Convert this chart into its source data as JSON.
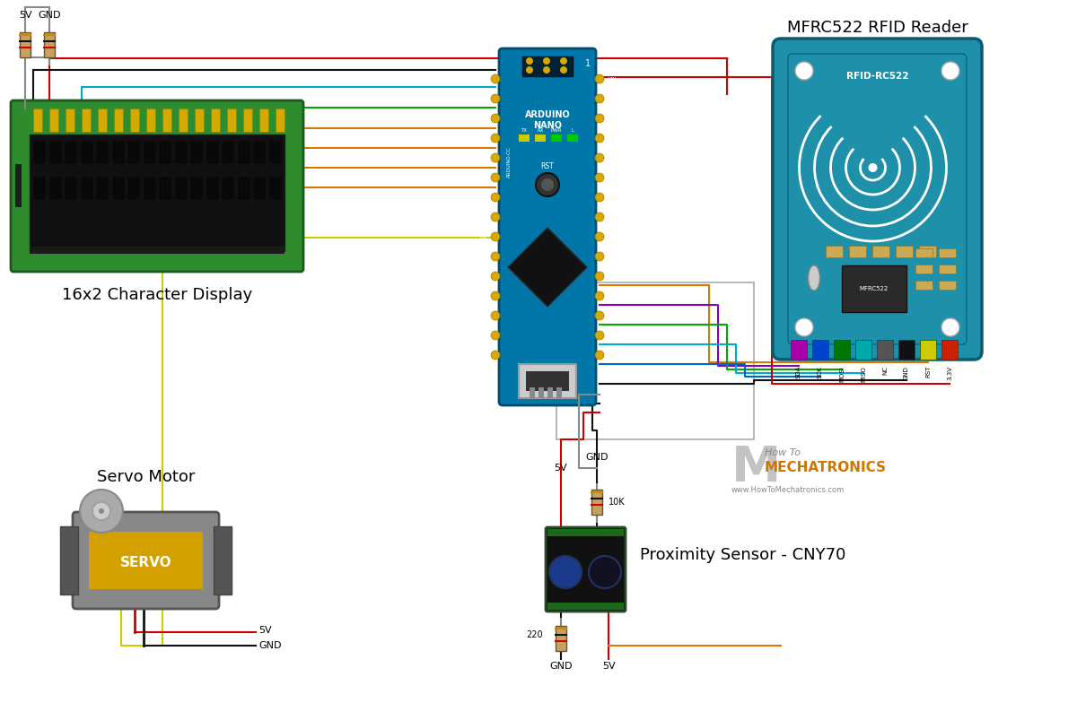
{
  "bg": "#ffffff",
  "lcd_green": "#2e8b2e",
  "lcd_screen": "#111111",
  "ard_blue": "#0077a8",
  "rfid_teal": "#1e90aa",
  "pin_gold": "#d4aa00",
  "wr": "#cc0000",
  "wk": "#111111",
  "wg": "#00aa00",
  "wb": "#0066cc",
  "wo": "#dd7700",
  "wy": "#cccc00",
  "wp": "#8800bb",
  "wc": "#00aacc",
  "wgr": "#888888",
  "label_lcd": "16x2 Character Display",
  "label_servo": "Servo Motor",
  "label_rfid": "MFRC522 RFID Reader",
  "label_prox": "Proximity Sensor - CNY70",
  "rfid_pins": [
    "SDA",
    "SCK",
    "MOSI",
    "MISO",
    "NC",
    "GND",
    "RST",
    "3.3V"
  ],
  "rfid_pin_colors": [
    "#aa00aa",
    "#0044cc",
    "#007700",
    "#00aaaa",
    "#555555",
    "#111111",
    "#cccc00",
    "#cc2200"
  ]
}
